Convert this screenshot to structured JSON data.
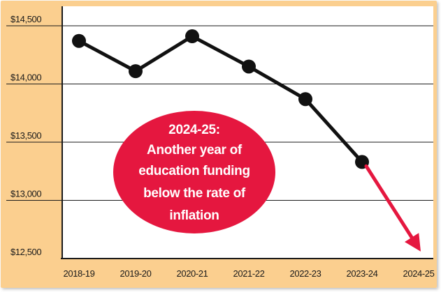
{
  "colors": {
    "panel_fill": "#fbcf8f",
    "plot_fill": "#ffffff",
    "grid": "#1a1a1a",
    "line": "#111111",
    "marker": "#111111",
    "trend_arrow": "#e5173f",
    "callout_fill": "#e5173f",
    "callout_text": "#ffffff"
  },
  "callout": {
    "lines": [
      "2024-25:",
      "Another year of",
      "education funding",
      "below the rate of",
      "inflation"
    ]
  },
  "chart_data": {
    "type": "line",
    "title": "",
    "xlabel": "",
    "ylabel": "",
    "categories": [
      "2018-19",
      "2019-20",
      "2020-21",
      "2021-22",
      "2022-23",
      "2023-24",
      "2024-25"
    ],
    "y_tick_labels": [
      "$14,500",
      "$14,000",
      "$13,500",
      "$13,000",
      "$12,500"
    ],
    "y_ticks": [
      14500,
      14000,
      13500,
      13000,
      12500
    ],
    "ylim": [
      12500,
      14500
    ],
    "grid": "horizontal",
    "series": [
      {
        "values": [
          14370,
          14110,
          14410,
          14150,
          13870,
          13330,
          null
        ]
      }
    ],
    "projection": {
      "from": {
        "x": "2023-24",
        "y": 13330
      },
      "to": {
        "x": "2024-25",
        "y": 12800
      }
    }
  }
}
